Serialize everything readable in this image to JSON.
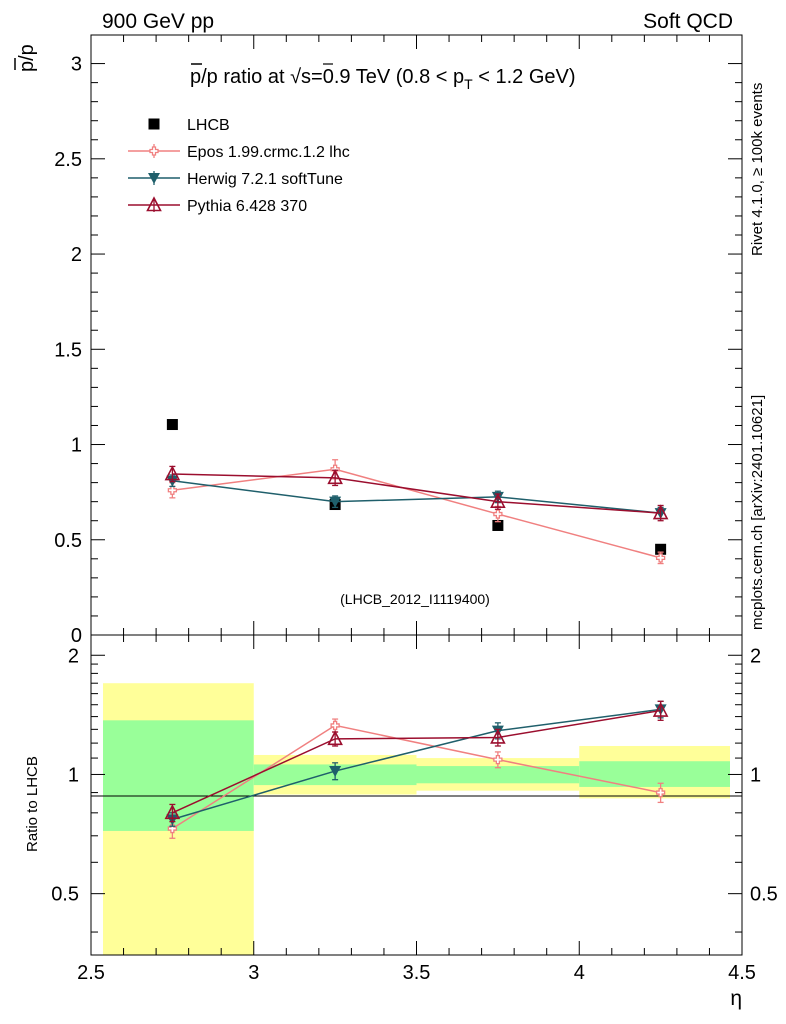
{
  "header": {
    "left": "900 GeV pp",
    "right": "Soft QCD"
  },
  "side": {
    "rivet": "Rivet 4.1.0, ≥ 100k events",
    "mcplots": "mcplots.cern.ch [arXiv:2401.10621]"
  },
  "chart_data": [
    {
      "type": "scatter",
      "panel": "main",
      "title": "p̅/p ratio at √s=0.9 TeV (0.8 < pT < 1.2 GeV)",
      "title_parts": {
        "lead": "p/p ratio at ",
        "sqrt": "√",
        "s": "s",
        "mid": "=0.9 TeV (0.8 < p",
        "sub": "T",
        "tail": " < 1.2 GeV)"
      },
      "ylabel": "p/p",
      "xlabel": "",
      "xlim": [
        2.5,
        4.5
      ],
      "ylim": [
        0,
        3.15
      ],
      "yticks": [
        {
          "v": 0.5,
          "label": "0.5"
        },
        {
          "v": 1,
          "label": "1"
        },
        {
          "v": 1.5,
          "label": "1.5"
        },
        {
          "v": 2,
          "label": "2"
        },
        {
          "v": 2.5,
          "label": "2.5"
        },
        {
          "v": 3,
          "label": "3"
        },
        {
          "v": 0,
          "label": "0"
        }
      ],
      "watermark": "(LHCB_2012_I1119400)",
      "x": [
        2.75,
        3.25,
        3.75,
        4.25
      ],
      "series": [
        {
          "name": "LHCB",
          "color": "#000000",
          "marker": "square",
          "values": [
            1.105,
            0.685,
            0.575,
            0.45
          ],
          "errors": [
            0.01,
            0.01,
            0.01,
            0.01
          ]
        },
        {
          "name": "Epos 1.99.crmc.1.2 lhc",
          "color": "#f08080",
          "marker": "cross",
          "values": [
            0.76,
            0.87,
            0.635,
            0.405
          ],
          "errors": [
            0.04,
            0.05,
            0.04,
            0.03
          ]
        },
        {
          "name": "Herwig 7.2.1 softTune",
          "color": "#1f5f6b",
          "marker": "triangle-down",
          "values": [
            0.81,
            0.7,
            0.725,
            0.64
          ],
          "errors": [
            0.03,
            0.03,
            0.03,
            0.03
          ]
        },
        {
          "name": "Pythia 6.428 370",
          "color": "#9b0e2e",
          "marker": "triangle-up-open",
          "values": [
            0.845,
            0.825,
            0.7,
            0.64
          ],
          "errors": [
            0.04,
            0.04,
            0.04,
            0.04
          ]
        }
      ]
    },
    {
      "type": "scatter",
      "panel": "ratio",
      "ylabel": "Ratio to LHCB",
      "xlabel": "η",
      "xlim": [
        2.5,
        4.5
      ],
      "ylim": [
        0.35,
        2.25
      ],
      "log_y": true,
      "yticks": [
        {
          "v": 0.5,
          "label": "0.5"
        },
        {
          "v": 1,
          "label": "1"
        },
        {
          "v": 2,
          "label": "2"
        }
      ],
      "xticks": [
        {
          "v": 2.5,
          "label": "2.5"
        },
        {
          "v": 3,
          "label": "3"
        },
        {
          "v": 3.5,
          "label": "3.5"
        },
        {
          "v": 4,
          "label": "4"
        },
        {
          "v": 4.5,
          "label": "4.5"
        }
      ],
      "bands": [
        {
          "x0": 2.5,
          "x1": 3.0,
          "yellow": [
            0.35,
            1.7
          ],
          "green": [
            0.72,
            1.37
          ]
        },
        {
          "x0": 3.0,
          "x1": 3.5,
          "yellow": [
            0.89,
            1.12
          ],
          "green": [
            0.94,
            1.06
          ]
        },
        {
          "x0": 3.5,
          "x1": 4.0,
          "yellow": [
            0.91,
            1.1
          ],
          "green": [
            0.95,
            1.05
          ]
        },
        {
          "x0": 4.0,
          "x1": 4.5,
          "yellow": [
            0.87,
            1.18
          ],
          "green": [
            0.93,
            1.08
          ]
        }
      ],
      "x": [
        2.75,
        3.25,
        3.75,
        4.25
      ],
      "series": [
        {
          "name": "Epos 1.99.crmc.1.2 lhc",
          "color": "#f08080",
          "marker": "cross",
          "values": [
            0.73,
            1.33,
            1.09,
            0.9
          ],
          "errors": [
            0.04,
            0.05,
            0.05,
            0.05
          ]
        },
        {
          "name": "Herwig 7.2.1 softTune",
          "color": "#1f5f6b",
          "marker": "triangle-down",
          "values": [
            0.77,
            1.02,
            1.29,
            1.46
          ],
          "errors": [
            0.03,
            0.05,
            0.06,
            0.07
          ]
        },
        {
          "name": "Pythia 6.428 370",
          "color": "#9b0e2e",
          "marker": "triangle-up-open",
          "values": [
            0.8,
            1.23,
            1.24,
            1.45
          ],
          "errors": [
            0.04,
            0.05,
            0.06,
            0.08
          ]
        }
      ]
    }
  ]
}
